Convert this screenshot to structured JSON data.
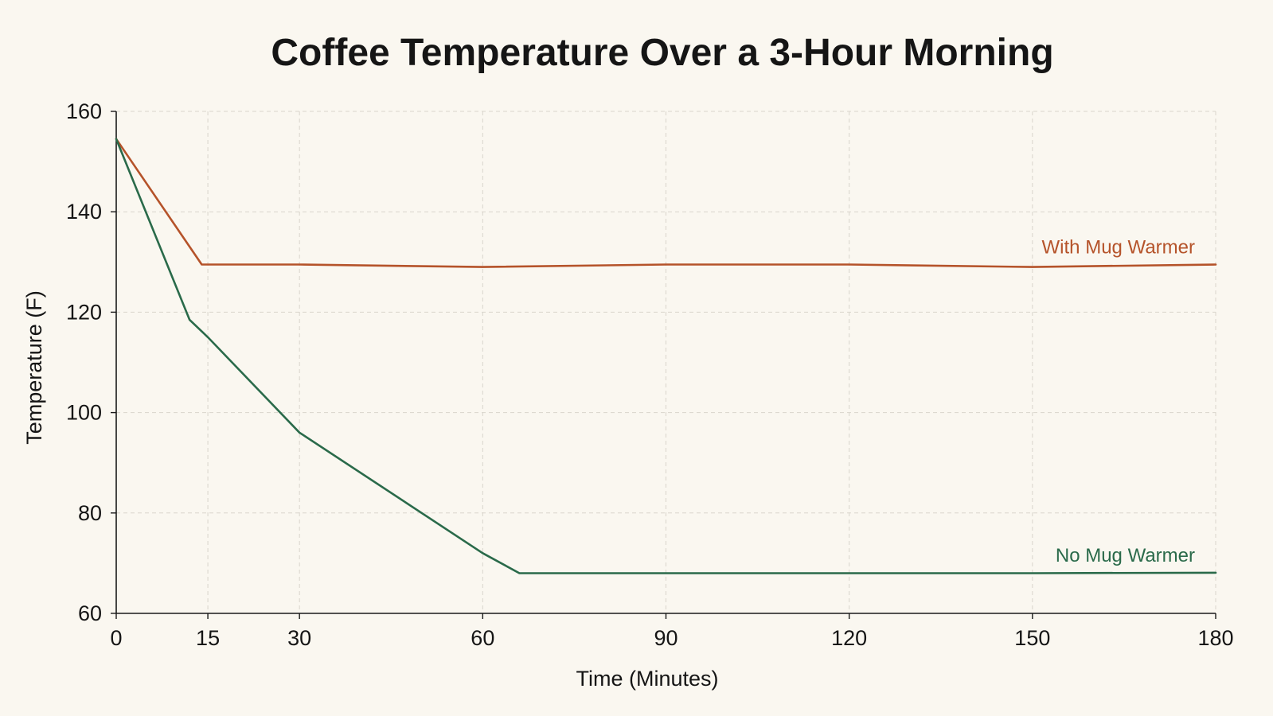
{
  "chart_data": {
    "type": "line",
    "title": "Coffee Temperature Over a 3-Hour Morning",
    "xlabel": "Time (Minutes)",
    "ylabel": "Temperature (F)",
    "xlim": [
      0,
      180
    ],
    "ylim": [
      60,
      160
    ],
    "xticks": [
      0,
      15,
      30,
      60,
      90,
      120,
      150,
      180
    ],
    "yticks": [
      60,
      80,
      100,
      120,
      140,
      160
    ],
    "grid": true,
    "series": [
      {
        "name": "With Mug Warmer",
        "color": "#b5532a",
        "x": [
          0,
          14,
          30,
          60,
          90,
          120,
          150,
          180
        ],
        "y": [
          154.5,
          129.5,
          129.5,
          129,
          129.5,
          129.5,
          129,
          129.5
        ]
      },
      {
        "name": "No Mug Warmer",
        "color": "#2a6a4a",
        "x": [
          0,
          12,
          15,
          30,
          60,
          66,
          90,
          120,
          150,
          180
        ],
        "y": [
          154.5,
          118.5,
          115,
          96,
          72,
          68,
          68,
          68,
          68,
          68.1
        ]
      }
    ]
  }
}
